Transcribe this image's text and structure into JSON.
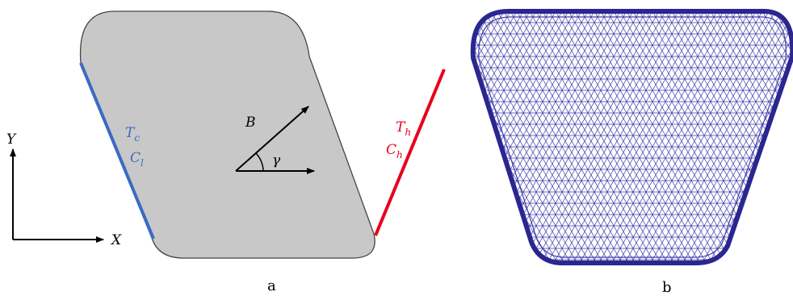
{
  "panel_a": {
    "axes": {
      "x_label": "X",
      "y_label": "Y"
    },
    "left_wall": {
      "temp": "T",
      "temp_sub": "c",
      "conc": "C",
      "conc_sub": "l",
      "color": "#3a6bc4"
    },
    "right_wall": {
      "temp": "T",
      "temp_sub": "h",
      "conc": "C",
      "conc_sub": "h",
      "color": "#e8001c"
    },
    "field": {
      "vector_label": "B",
      "angle_label": "γ"
    },
    "fill_color": "#c8c8c8",
    "caption": "a"
  },
  "panel_b": {
    "mesh_color": "#3d3aa8",
    "caption": "b"
  }
}
